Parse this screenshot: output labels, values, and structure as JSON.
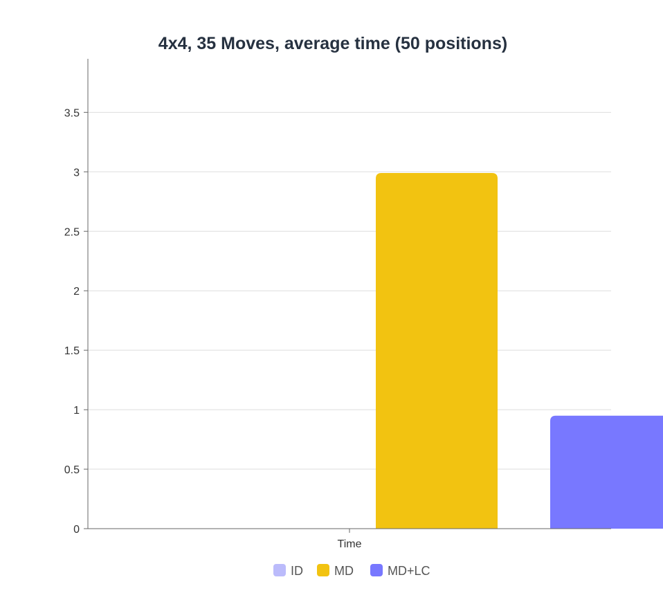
{
  "chart_data": {
    "type": "bar",
    "title": "4x4, 35 Moves, average time (50 positions)",
    "categories": [
      "Time"
    ],
    "series": [
      {
        "name": "ID",
        "values": [
          0
        ],
        "color": "#bbbbfb"
      },
      {
        "name": "MD",
        "values": [
          2.99
        ],
        "color": "#f2c311"
      },
      {
        "name": "MD+LC",
        "values": [
          0.95
        ],
        "color": "#7878ff"
      }
    ],
    "xlabel": "",
    "ylabel": "",
    "ylim": [
      0,
      3.95
    ],
    "yticks": [
      0,
      0.5,
      1,
      1.5,
      2,
      2.5,
      3,
      3.5
    ],
    "ytick_labels": [
      "0",
      "0.5",
      "1",
      "1.5",
      "2",
      "2.5",
      "3",
      "3.5"
    ],
    "grid": true,
    "legend": "bottom-center"
  }
}
